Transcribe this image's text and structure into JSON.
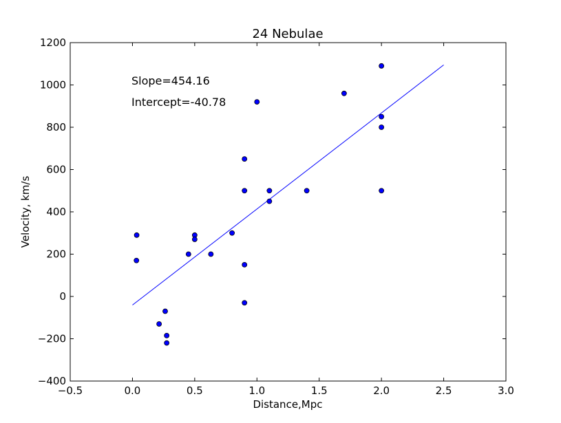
{
  "chart_data": {
    "type": "scatter",
    "title": "24 Nebulae",
    "xlabel": "Distance,Mpc",
    "ylabel": "Velocity, km/s",
    "xlim": [
      -0.5,
      3.0
    ],
    "ylim": [
      -400,
      1200
    ],
    "xticks": [
      "−0.5",
      "0.0",
      "0.5",
      "1.0",
      "1.5",
      "2.0",
      "2.5",
      "3.0"
    ],
    "yticks": [
      "−400",
      "−200",
      "0",
      "200",
      "400",
      "600",
      "800",
      "1000",
      "1200"
    ],
    "grid": false,
    "annotations": {
      "slope": "Slope=454.16",
      "intercept": "Intercept=-40.78"
    },
    "series": [
      {
        "marker_color": "#0000ff",
        "points": [
          {
            "x": 0.032,
            "y": 170
          },
          {
            "x": 0.034,
            "y": 290
          },
          {
            "x": 0.214,
            "y": -130
          },
          {
            "x": 0.263,
            "y": -70
          },
          {
            "x": 0.275,
            "y": -185
          },
          {
            "x": 0.275,
            "y": -220
          },
          {
            "x": 0.45,
            "y": 200
          },
          {
            "x": 0.5,
            "y": 290
          },
          {
            "x": 0.5,
            "y": 270
          },
          {
            "x": 0.63,
            "y": 200
          },
          {
            "x": 0.8,
            "y": 300
          },
          {
            "x": 0.9,
            "y": -30
          },
          {
            "x": 0.9,
            "y": 650
          },
          {
            "x": 0.9,
            "y": 150
          },
          {
            "x": 0.9,
            "y": 500
          },
          {
            "x": 1.0,
            "y": 920
          },
          {
            "x": 1.1,
            "y": 450
          },
          {
            "x": 1.1,
            "y": 500
          },
          {
            "x": 1.4,
            "y": 500
          },
          {
            "x": 1.7,
            "y": 960
          },
          {
            "x": 2.0,
            "y": 500
          },
          {
            "x": 2.0,
            "y": 850
          },
          {
            "x": 2.0,
            "y": 800
          },
          {
            "x": 2.0,
            "y": 1090
          }
        ]
      }
    ],
    "fit_line": {
      "color": "#0000ff",
      "slope": 454.16,
      "intercept": -40.78,
      "x_range": [
        0.0,
        2.5
      ]
    }
  }
}
